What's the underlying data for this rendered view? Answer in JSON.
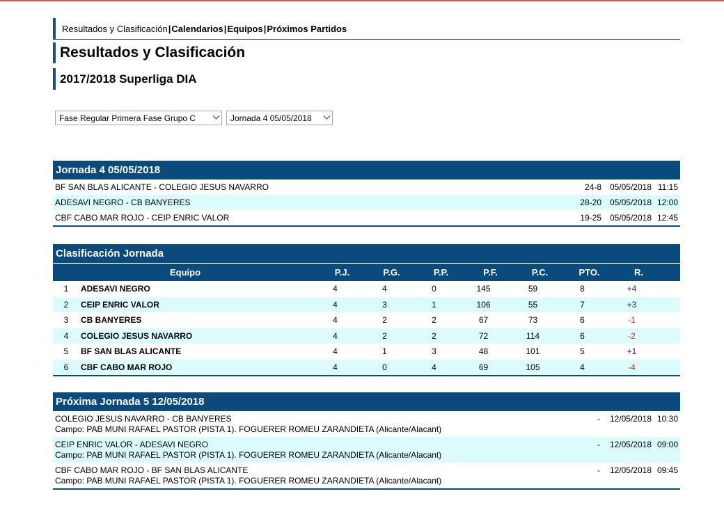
{
  "nav": {
    "items": [
      {
        "label": "Resultados y Clasificación",
        "bold": false
      },
      {
        "label": "Calendarios",
        "bold": true
      },
      {
        "label": "Equipos",
        "bold": true
      },
      {
        "label": "Próximos Partidos",
        "bold": true
      }
    ],
    "separator": "|"
  },
  "page_title": "Resultados y Clasificación",
  "season_title": "2017/2018 Superliga DIA",
  "filters": {
    "phase_selected": "Fase Regular Primera Fase Grupo C",
    "round_selected": "Jornada 4 05/05/2018"
  },
  "results": {
    "header": "Jornada 4 05/05/2018",
    "matches": [
      {
        "teams": "BF SAN BLAS ALICANTE - COLEGIO JESUS NAVARRO",
        "score": "24-8",
        "date": "05/05/2018",
        "time": "11:15"
      },
      {
        "teams": "ADESAVI NEGRO - CB BANYERES",
        "score": "28-20",
        "date": "05/05/2018",
        "time": "12:00"
      },
      {
        "teams": "CBF CABO MAR ROJO - CEIP ENRIC VALOR",
        "score": "19-25",
        "date": "05/05/2018",
        "time": "12:45"
      }
    ]
  },
  "standings": {
    "header": "Clasificación Jornada",
    "columns": {
      "team": "Equipo",
      "pj": "P.J.",
      "pg": "P.G.",
      "pp": "P.P.",
      "pf": "P.F.",
      "pc": "P.C.",
      "pto": "PTO.",
      "r": "R."
    },
    "rows": [
      {
        "pos": "1",
        "team": "ADESAVI NEGRO",
        "pj": "4",
        "pg": "4",
        "pp": "0",
        "pf": "145",
        "pc": "59",
        "pto": "8",
        "r": "+4"
      },
      {
        "pos": "2",
        "team": "CEIP ENRIC VALOR",
        "pj": "4",
        "pg": "3",
        "pp": "1",
        "pf": "106",
        "pc": "55",
        "pto": "7",
        "r": "+3"
      },
      {
        "pos": "3",
        "team": "CB BANYERES",
        "pj": "4",
        "pg": "2",
        "pp": "2",
        "pf": "67",
        "pc": "73",
        "pto": "6",
        "r": "-1"
      },
      {
        "pos": "4",
        "team": "COLEGIO JESUS NAVARRO",
        "pj": "4",
        "pg": "2",
        "pp": "2",
        "pf": "72",
        "pc": "114",
        "pto": "6",
        "r": "-2"
      },
      {
        "pos": "5",
        "team": "BF SAN BLAS ALICANTE",
        "pj": "4",
        "pg": "1",
        "pp": "3",
        "pf": "48",
        "pc": "101",
        "pto": "5",
        "r": "+1"
      },
      {
        "pos": "6",
        "team": "CBF CABO MAR ROJO",
        "pj": "4",
        "pg": "0",
        "pp": "4",
        "pf": "69",
        "pc": "105",
        "pto": "4",
        "r": "-4"
      }
    ]
  },
  "next_round": {
    "header": "Próxima Jornada 5 12/05/2018",
    "matches": [
      {
        "teams": "COLEGIO JESUS NAVARRO - CB BANYERES",
        "venue": "Campo: PAB MUNI RAFAEL PASTOR (PISTA 1). FOGUERER ROMEU ZARANDIETA (Alicante/Alacant)",
        "score": "-",
        "date": "12/05/2018",
        "time": "10:30"
      },
      {
        "teams": "CEIP ENRIC VALOR - ADESAVI NEGRO",
        "venue": "Campo: PAB MUNI RAFAEL PASTOR (PISTA 1). FOGUERER ROMEU ZARANDIETA (Alicante/Alacant)",
        "score": "-",
        "date": "12/05/2018",
        "time": "09:00"
      },
      {
        "teams": "CBF CABO MAR ROJO - BF SAN BLAS ALICANTE",
        "venue": "Campo: PAB MUNI RAFAEL PASTOR (PISTA 1). FOGUERER ROMEU ZARANDIETA (Alicante/Alacant)",
        "score": "-",
        "date": "12/05/2018",
        "time": "09:45"
      }
    ]
  },
  "colors": {
    "header_bg": "#0b4a7d",
    "alt_row_bg": "#dcfbfb",
    "positive": "#1a1aa6",
    "negative": "#d9230f"
  }
}
